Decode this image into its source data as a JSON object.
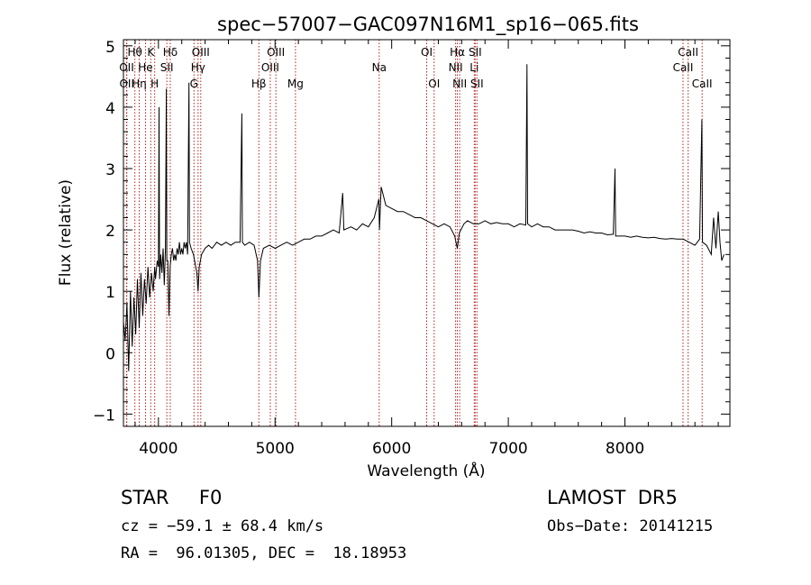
{
  "chart_data": {
    "type": "line",
    "title": "spec−57007−GAC097N16M1_sp16−065.fits",
    "xlabel": "Wavelength (Å)",
    "ylabel": "Flux (relative)",
    "xlim": [
      3700,
      8900
    ],
    "ylim": [
      -1.2,
      5.1
    ],
    "xticks": [
      4000,
      5000,
      6000,
      7000,
      8000
    ],
    "yticks": [
      -1,
      0,
      1,
      2,
      3,
      4,
      5
    ],
    "grid": false,
    "line_color": "#000000",
    "marker_color": "#b22222",
    "series": [
      {
        "points": [
          [
            3700,
            0.5
          ],
          [
            3715,
            0.2
          ],
          [
            3730,
            0.8
          ],
          [
            3745,
            -0.3
          ],
          [
            3760,
            1.0
          ],
          [
            3775,
            0.1
          ],
          [
            3790,
            0.9
          ],
          [
            3805,
            0.3
          ],
          [
            3820,
            1.2
          ],
          [
            3835,
            0.4
          ],
          [
            3850,
            1.3
          ],
          [
            3865,
            0.6
          ],
          [
            3880,
            1.2
          ],
          [
            3895,
            0.8
          ],
          [
            3910,
            1.4
          ],
          [
            3925,
            0.9
          ],
          [
            3940,
            1.3
          ],
          [
            3955,
            1.0
          ],
          [
            3968,
            1.4
          ],
          [
            3975,
            1.2
          ],
          [
            3990,
            1.5
          ],
          [
            4000,
            1.4
          ],
          [
            4005,
            4.0
          ],
          [
            4010,
            1.2
          ],
          [
            4020,
            1.6
          ],
          [
            4030,
            1.3
          ],
          [
            4040,
            1.7
          ],
          [
            4050,
            1.1
          ],
          [
            4060,
            1.7
          ],
          [
            4068,
            4.3
          ],
          [
            4072,
            1.5
          ],
          [
            4080,
            1.5
          ],
          [
            4090,
            0.6
          ],
          [
            4100,
            1.4
          ],
          [
            4110,
            1.6
          ],
          [
            4120,
            1.7
          ],
          [
            4130,
            1.5
          ],
          [
            4140,
            1.6
          ],
          [
            4150,
            1.5
          ],
          [
            4160,
            1.7
          ],
          [
            4170,
            1.6
          ],
          [
            4180,
            1.8
          ],
          [
            4190,
            1.6
          ],
          [
            4200,
            1.7
          ],
          [
            4210,
            1.6
          ],
          [
            4220,
            1.8
          ],
          [
            4230,
            1.7
          ],
          [
            4240,
            1.8
          ],
          [
            4250,
            1.6
          ],
          [
            4262,
            4.4
          ],
          [
            4266,
            1.8
          ],
          [
            4280,
            1.7
          ],
          [
            4300,
            1.6
          ],
          [
            4320,
            1.4
          ],
          [
            4330,
            1.3
          ],
          [
            4340,
            1.0
          ],
          [
            4350,
            1.4
          ],
          [
            4370,
            1.6
          ],
          [
            4400,
            1.7
          ],
          [
            4430,
            1.75
          ],
          [
            4460,
            1.7
          ],
          [
            4500,
            1.8
          ],
          [
            4540,
            1.75
          ],
          [
            4580,
            1.8
          ],
          [
            4620,
            1.75
          ],
          [
            4660,
            1.8
          ],
          [
            4700,
            1.8
          ],
          [
            4715,
            3.9
          ],
          [
            4720,
            1.8
          ],
          [
            4740,
            1.75
          ],
          [
            4780,
            1.8
          ],
          [
            4820,
            1.75
          ],
          [
            4850,
            1.5
          ],
          [
            4861,
            0.9
          ],
          [
            4875,
            1.5
          ],
          [
            4900,
            1.7
          ],
          [
            4950,
            1.75
          ],
          [
            5000,
            1.7
          ],
          [
            5050,
            1.75
          ],
          [
            5100,
            1.8
          ],
          [
            5150,
            1.75
          ],
          [
            5200,
            1.8
          ],
          [
            5250,
            1.85
          ],
          [
            5300,
            1.85
          ],
          [
            5350,
            1.9
          ],
          [
            5400,
            1.9
          ],
          [
            5450,
            1.95
          ],
          [
            5500,
            2.0
          ],
          [
            5550,
            1.95
          ],
          [
            5580,
            2.6
          ],
          [
            5590,
            2.0
          ],
          [
            5650,
            2.05
          ],
          [
            5700,
            2.0
          ],
          [
            5750,
            2.1
          ],
          [
            5800,
            2.05
          ],
          [
            5850,
            2.2
          ],
          [
            5890,
            2.5
          ],
          [
            5895,
            2.0
          ],
          [
            5910,
            2.7
          ],
          [
            5950,
            2.4
          ],
          [
            6000,
            2.35
          ],
          [
            6050,
            2.3
          ],
          [
            6100,
            2.3
          ],
          [
            6150,
            2.25
          ],
          [
            6200,
            2.2
          ],
          [
            6250,
            2.2
          ],
          [
            6300,
            2.15
          ],
          [
            6350,
            2.1
          ],
          [
            6400,
            2.05
          ],
          [
            6450,
            2.1
          ],
          [
            6500,
            2.05
          ],
          [
            6540,
            1.9
          ],
          [
            6563,
            1.7
          ],
          [
            6580,
            1.95
          ],
          [
            6620,
            2.1
          ],
          [
            6650,
            2.15
          ],
          [
            6700,
            2.1
          ],
          [
            6750,
            2.1
          ],
          [
            6800,
            2.15
          ],
          [
            6850,
            2.1
          ],
          [
            6900,
            2.12
          ],
          [
            6950,
            2.1
          ],
          [
            7000,
            2.1
          ],
          [
            7050,
            2.05
          ],
          [
            7100,
            2.1
          ],
          [
            7150,
            2.08
          ],
          [
            7160,
            4.7
          ],
          [
            7165,
            2.1
          ],
          [
            7200,
            2.05
          ],
          [
            7250,
            2.1
          ],
          [
            7300,
            2.05
          ],
          [
            7350,
            2.05
          ],
          [
            7400,
            2.0
          ],
          [
            7450,
            2.0
          ],
          [
            7500,
            2.0
          ],
          [
            7550,
            2.0
          ],
          [
            7600,
            1.98
          ],
          [
            7650,
            1.95
          ],
          [
            7700,
            1.97
          ],
          [
            7750,
            1.95
          ],
          [
            7800,
            1.95
          ],
          [
            7850,
            1.92
          ],
          [
            7900,
            1.93
          ],
          [
            7915,
            3.0
          ],
          [
            7920,
            1.9
          ],
          [
            7950,
            1.9
          ],
          [
            8000,
            1.9
          ],
          [
            8050,
            1.88
          ],
          [
            8100,
            1.9
          ],
          [
            8150,
            1.88
          ],
          [
            8200,
            1.87
          ],
          [
            8250,
            1.88
          ],
          [
            8300,
            1.86
          ],
          [
            8350,
            1.85
          ],
          [
            8400,
            1.86
          ],
          [
            8450,
            1.85
          ],
          [
            8500,
            1.85
          ],
          [
            8550,
            1.8
          ],
          [
            8600,
            1.75
          ],
          [
            8640,
            1.85
          ],
          [
            8660,
            3.8
          ],
          [
            8665,
            1.8
          ],
          [
            8700,
            1.75
          ],
          [
            8740,
            1.6
          ],
          [
            8760,
            2.2
          ],
          [
            8780,
            1.7
          ],
          [
            8800,
            2.3
          ],
          [
            8815,
            1.8
          ],
          [
            8830,
            1.5
          ],
          [
            8850,
            1.6
          ]
        ]
      }
    ],
    "lines": [
      {
        "label": "Hθ",
        "wavelength": 3798,
        "row": 1
      },
      {
        "label": "OII",
        "wavelength": 3727,
        "row": 2
      },
      {
        "label": "OII",
        "wavelength": 3729,
        "row": 3
      },
      {
        "label": "Hη",
        "wavelength": 3835,
        "row": 3
      },
      {
        "label": "He",
        "wavelength": 3889,
        "row": 2
      },
      {
        "label": "K",
        "wavelength": 3934,
        "row": 1
      },
      {
        "label": "H",
        "wavelength": 3968,
        "row": 3
      },
      {
        "label": "Hδ",
        "wavelength": 4101,
        "row": 1
      },
      {
        "label": "SII",
        "wavelength": 4072,
        "row": 2
      },
      {
        "label": "OIII",
        "wavelength": 4363,
        "row": 1
      },
      {
        "label": "Hγ",
        "wavelength": 4340,
        "row": 2
      },
      {
        "label": "G",
        "wavelength": 4305,
        "row": 3
      },
      {
        "label": "Hβ",
        "wavelength": 4861,
        "row": 3
      },
      {
        "label": "OIII",
        "wavelength": 5007,
        "row": 1
      },
      {
        "label": "OIII",
        "wavelength": 4959,
        "row": 2
      },
      {
        "label": "Mg",
        "wavelength": 5175,
        "row": 3
      },
      {
        "label": "Na",
        "wavelength": 5893,
        "row": 2
      },
      {
        "label": "OI",
        "wavelength": 6300,
        "row": 1
      },
      {
        "label": "OI",
        "wavelength": 6364,
        "row": 3
      },
      {
        "label": "Hα",
        "wavelength": 6563,
        "row": 1
      },
      {
        "label": "NII",
        "wavelength": 6548,
        "row": 2
      },
      {
        "label": "NII",
        "wavelength": 6583,
        "row": 3
      },
      {
        "label": "SII",
        "wavelength": 6716,
        "row": 1
      },
      {
        "label": "Li",
        "wavelength": 6708,
        "row": 2
      },
      {
        "label": "SII",
        "wavelength": 6731,
        "row": 3
      },
      {
        "label": "CaII",
        "wavelength": 8542,
        "row": 1
      },
      {
        "label": "CaII",
        "wavelength": 8498,
        "row": 2
      },
      {
        "label": "CaII",
        "wavelength": 8662,
        "row": 3
      }
    ]
  },
  "footer": {
    "object": "STAR     F0",
    "survey": "LAMOST  DR5",
    "cz": "cz = −59.1 ± 68.4 km/s",
    "obs_date": "Obs−Date: 20141215",
    "radec": "RA =  96.01305, DEC =  18.18953"
  }
}
